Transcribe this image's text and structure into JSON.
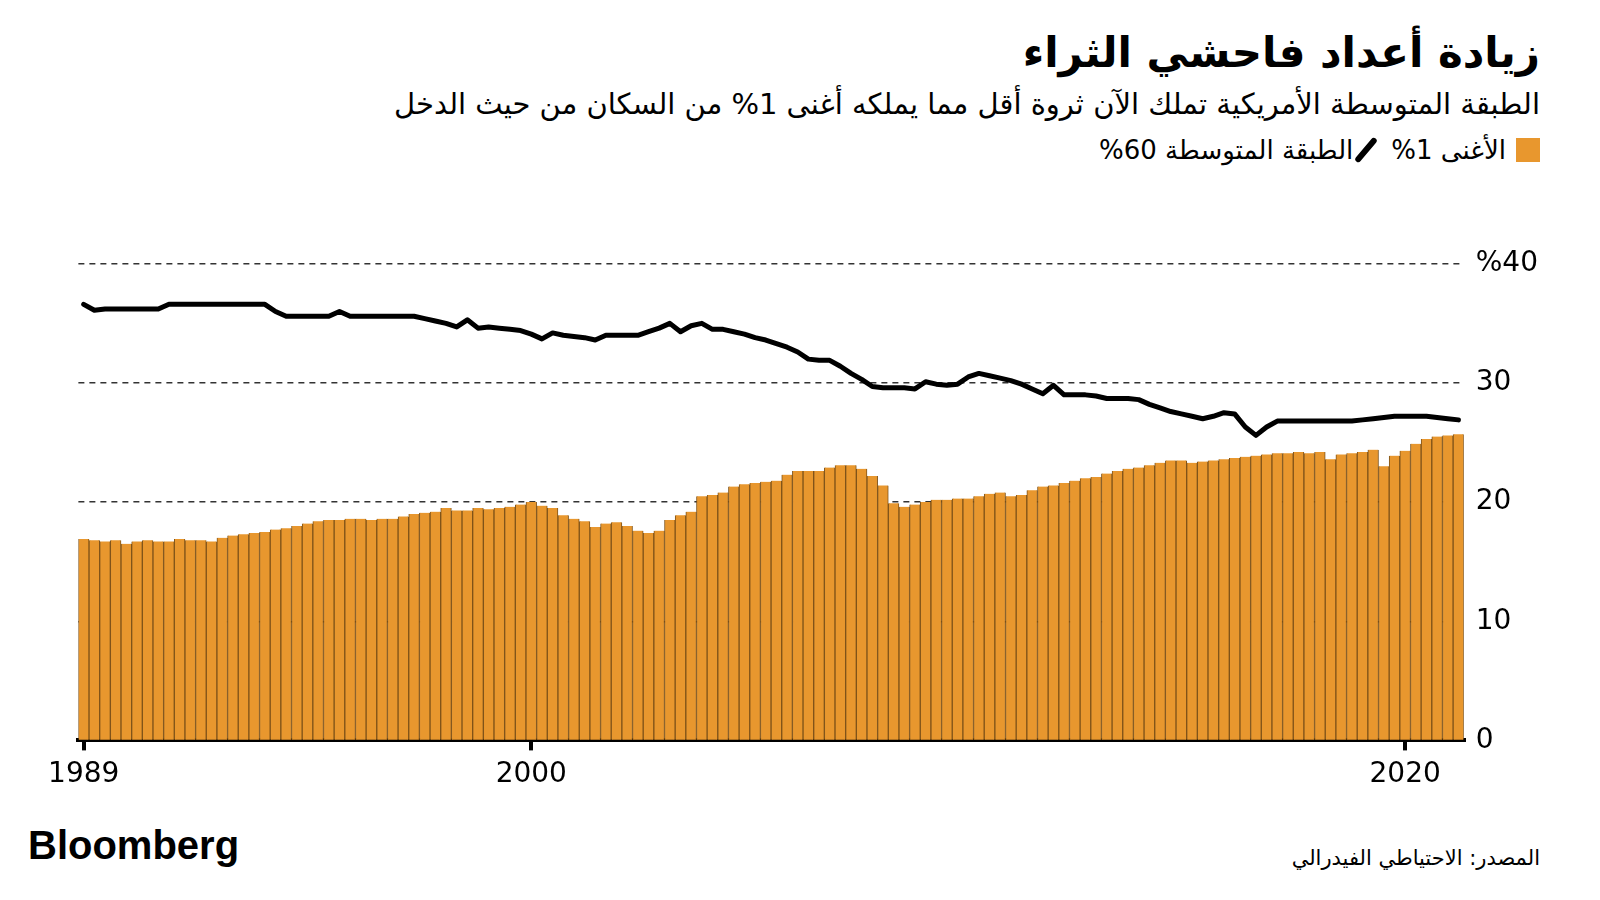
{
  "chart_data": {
    "type": "bar",
    "title": "زيادة أعداد فاحشي الثراء",
    "subtitle": "الطبقة المتوسطة الأمريكية تملك الآن ثروة أقل مما يملكه أغنى 1% من السكان من حيث الدخل",
    "source": "المصدر: الاحتياطي الفيدرالي",
    "publisher": "Bloomberg",
    "categories": [
      "1989",
      null,
      null,
      null,
      null,
      null,
      null,
      null,
      null,
      null,
      null,
      null,
      null,
      null,
      null,
      null,
      null,
      null,
      null,
      null,
      null,
      null,
      null,
      null,
      null,
      null,
      null,
      null,
      null,
      null,
      null,
      null,
      null,
      null,
      null,
      null,
      null,
      null,
      null,
      null,
      null,
      null,
      "2000",
      null,
      null,
      null,
      null,
      null,
      null,
      null,
      null,
      null,
      null,
      null,
      null,
      null,
      null,
      null,
      null,
      null,
      null,
      null,
      null,
      null,
      null,
      null,
      null,
      null,
      null,
      null,
      null,
      null,
      null,
      null,
      null,
      null,
      null,
      null,
      null,
      null,
      null,
      null,
      null,
      null,
      null,
      null,
      null,
      null,
      null,
      null,
      null,
      null,
      null,
      null,
      null,
      null,
      null,
      null,
      null,
      null,
      null,
      null,
      null,
      null,
      null,
      null,
      null,
      null,
      null,
      null,
      null,
      null,
      null,
      null,
      null,
      null,
      null,
      null,
      null,
      null,
      null,
      null,
      null,
      null,
      "2020",
      null,
      null,
      null,
      null,
      null
    ],
    "series": [
      {
        "name": "الأغنى 1%",
        "type": "bar",
        "color": "#e8972e",
        "values": [
          16.9,
          16.8,
          16.7,
          16.8,
          16.5,
          16.7,
          16.8,
          16.7,
          16.7,
          16.9,
          16.8,
          16.8,
          16.7,
          17.0,
          17.2,
          17.3,
          17.4,
          17.5,
          17.7,
          17.8,
          18.0,
          18.2,
          18.4,
          18.5,
          18.5,
          18.6,
          18.6,
          18.5,
          18.6,
          18.6,
          18.8,
          19.0,
          19.1,
          19.2,
          19.5,
          19.3,
          19.3,
          19.5,
          19.4,
          19.5,
          19.6,
          19.8,
          20.0,
          19.7,
          19.5,
          18.9,
          18.6,
          18.4,
          17.9,
          18.2,
          18.3,
          18.0,
          17.6,
          17.4,
          17.6,
          18.5,
          18.9,
          19.2,
          20.5,
          20.6,
          20.8,
          21.3,
          21.5,
          21.6,
          21.7,
          21.8,
          22.3,
          22.6,
          22.6,
          22.6,
          22.9,
          23.1,
          23.1,
          22.8,
          22.2,
          21.4,
          19.9,
          19.6,
          19.8,
          20.0,
          20.2,
          20.2,
          20.3,
          20.3,
          20.5,
          20.7,
          20.8,
          20.5,
          20.6,
          21.0,
          21.3,
          21.4,
          21.6,
          21.8,
          22.0,
          22.1,
          22.4,
          22.6,
          22.8,
          22.9,
          23.1,
          23.3,
          23.5,
          23.5,
          23.3,
          23.4,
          23.5,
          23.6,
          23.7,
          23.8,
          23.9,
          24.0,
          24.1,
          24.1,
          24.2,
          24.1,
          24.2,
          23.6,
          24.0,
          24.1,
          24.2,
          24.4,
          23.0,
          23.9,
          24.3,
          24.9,
          25.3,
          25.5,
          25.6,
          25.7
        ]
      },
      {
        "name": "الطبقة المتوسطة 60%",
        "type": "line",
        "color": "#000000",
        "values": [
          36.6,
          36.1,
          36.2,
          36.2,
          36.2,
          36.2,
          36.2,
          36.2,
          36.6,
          36.6,
          36.6,
          36.6,
          36.6,
          36.6,
          36.6,
          36.6,
          36.6,
          36.6,
          36.0,
          35.6,
          35.6,
          35.6,
          35.6,
          35.6,
          36.0,
          35.6,
          35.6,
          35.6,
          35.6,
          35.6,
          35.6,
          35.6,
          35.4,
          35.2,
          35.0,
          34.7,
          35.3,
          34.6,
          34.7,
          34.6,
          34.5,
          34.4,
          34.1,
          33.7,
          34.2,
          34.0,
          33.9,
          33.8,
          33.6,
          34.0,
          34.0,
          34.0,
          34.0,
          34.3,
          34.6,
          35.0,
          34.3,
          34.8,
          35.0,
          34.5,
          34.5,
          34.3,
          34.1,
          33.8,
          33.6,
          33.3,
          33.0,
          32.6,
          32.0,
          31.9,
          31.9,
          31.4,
          30.8,
          30.3,
          29.7,
          29.6,
          29.6,
          29.6,
          29.5,
          30.1,
          29.9,
          29.8,
          29.9,
          30.5,
          30.8,
          30.6,
          30.4,
          30.2,
          29.9,
          29.5,
          29.1,
          29.8,
          29.0,
          29.0,
          29.0,
          28.9,
          28.7,
          28.7,
          28.7,
          28.6,
          28.2,
          27.9,
          27.6,
          27.4,
          27.2,
          27.0,
          27.2,
          27.5,
          27.4,
          26.3,
          25.6,
          26.3,
          26.8,
          26.8,
          26.8,
          26.8,
          26.8,
          26.8,
          26.8,
          26.8,
          26.9,
          27.0,
          27.1,
          27.2,
          27.2,
          27.2,
          27.2,
          27.1,
          27.0,
          26.9
        ]
      }
    ],
    "ylim": [
      0,
      40
    ],
    "yticks": [
      0,
      10,
      20,
      30,
      {
        "value": 40,
        "label": "%40"
      }
    ],
    "grid": true,
    "legend": "top-right"
  }
}
